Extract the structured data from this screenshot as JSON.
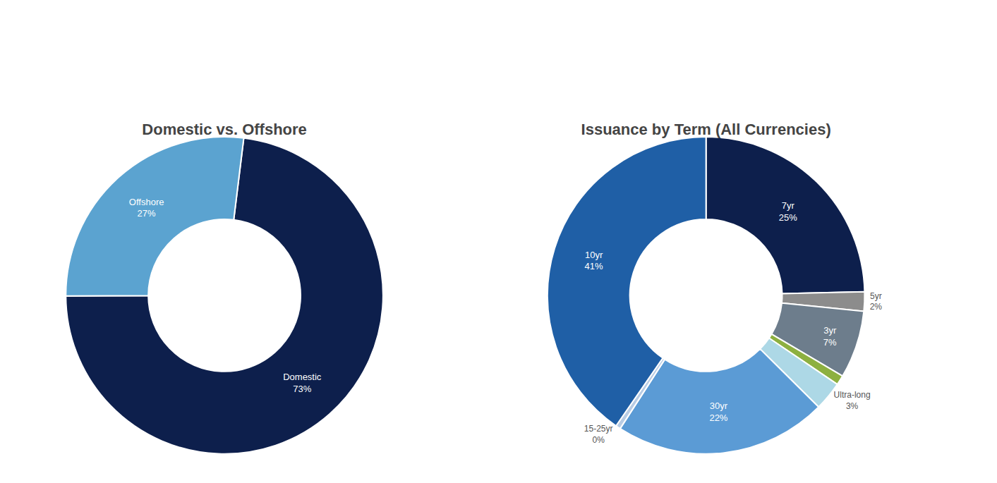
{
  "chart_data": [
    {
      "type": "pie",
      "title": "Domestic vs. Offshore",
      "values": [
        73,
        27
      ],
      "value_labels": [
        "Domestic\n73%",
        "Offshore\n27%"
      ],
      "colors": [
        "#0d1f4c",
        "#5ba3d0"
      ]
    },
    {
      "type": "pie",
      "title": "Issuance by Term (All Currencies)",
      "values": [
        25,
        2,
        7,
        1,
        3,
        22,
        0.5,
        41
      ],
      "value_labels": [
        "7yr\n25%",
        "5yr\n2%",
        "3yr\n7%",
        null,
        "Ultra-long\n3%",
        "30yr\n22%",
        "15-25yr\n0%",
        "10yr\n41%"
      ],
      "colors": [
        "#0d1f4c",
        "#8c8c8c",
        "#6d7d8c",
        "#8db040",
        "#add8e6",
        "#5b9bd5",
        "#b8cce4",
        "#1f5fa6"
      ]
    }
  ]
}
